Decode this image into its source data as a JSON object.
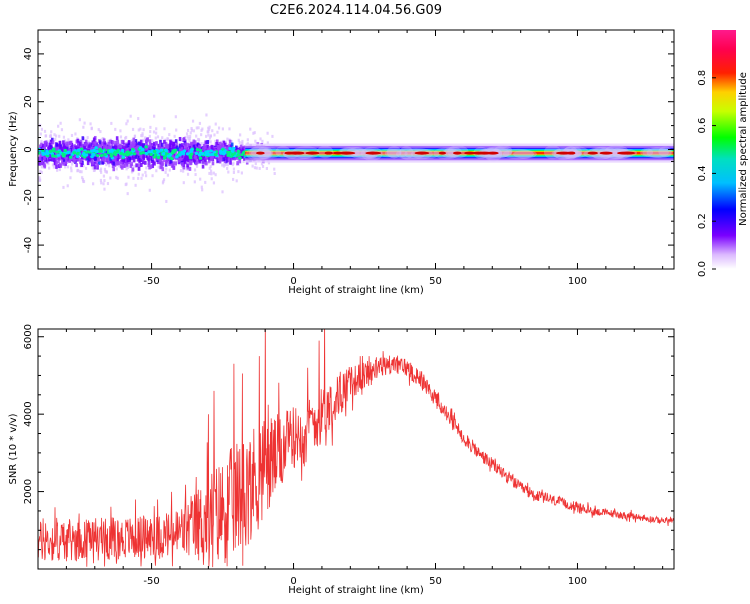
{
  "title": "C2E6.2024.114.04.56.G09",
  "chart_data": [
    {
      "type": "heatmap",
      "xlabel": "Height of straight line (km)",
      "ylabel": "Frequency (Hz)",
      "xlim": [
        -90,
        134
      ],
      "ylim": [
        -50,
        50
      ],
      "x_ticks": [
        -50,
        0,
        50,
        100
      ],
      "y_ticks": [
        -40,
        -20,
        0,
        20,
        40
      ],
      "colorbar": {
        "label": "Normalized spectral amplitude",
        "range": [
          0,
          1
        ],
        "ticks": [
          0.0,
          0.2,
          0.4,
          0.6,
          0.8
        ],
        "colormap": "rainbow (white-purple-blue-cyan-green-yellow-red-pink)"
      },
      "center_frequency_hz": -1.5,
      "regions": [
        {
          "x_from": -90,
          "x_to": -15,
          "description": "broad scatter",
          "freq_spread_hz": [
            -12,
            12
          ],
          "max_outliers_hz": [
            -25,
            28
          ]
        },
        {
          "x_from": -15,
          "x_to": 134,
          "description": "narrow line",
          "freq_spread_hz": [
            -3,
            0.5
          ]
        }
      ],
      "colors": {
        "max": "#e00000",
        "line_core": "#ff0000",
        "halo": "#c8a0ff"
      }
    },
    {
      "type": "line",
      "xlabel": "Height of straight line (km)",
      "ylabel": "SNR (10 * v/v)",
      "xlim": [
        -90,
        134
      ],
      "ylim": [
        0,
        6200
      ],
      "x_ticks": [
        -50,
        0,
        50,
        100
      ],
      "y_ticks": [
        2000,
        4000,
        6000
      ],
      "color": "#ee3333",
      "envelope": {
        "x": [
          -90,
          -75,
          -60,
          -45,
          -40,
          -35,
          -30,
          -25,
          -20,
          -15,
          -10,
          -5,
          0,
          5,
          10,
          15,
          20,
          25,
          30,
          35,
          40,
          45,
          50,
          55,
          60,
          65,
          70,
          75,
          80,
          85,
          90,
          95,
          100,
          105,
          110,
          115,
          120,
          125,
          130,
          134
        ],
        "mean": [
          700,
          750,
          800,
          850,
          950,
          1100,
          1300,
          1500,
          1800,
          2200,
          2600,
          3000,
          3400,
          3700,
          4000,
          4400,
          4800,
          5000,
          5200,
          5300,
          5200,
          4900,
          4400,
          3900,
          3400,
          3000,
          2700,
          2400,
          2100,
          1900,
          1800,
          1700,
          1600,
          1500,
          1450,
          1400,
          1350,
          1300,
          1250,
          1250
        ],
        "noise": [
          550,
          550,
          550,
          600,
          700,
          900,
          1200,
          1400,
          1500,
          1500,
          1400,
          1000,
          800,
          700,
          700,
          600,
          450,
          350,
          300,
          250,
          250,
          250,
          220,
          200,
          200,
          180,
          170,
          160,
          150,
          150,
          140,
          130,
          120,
          110,
          100,
          100,
          90,
          90,
          80,
          80
        ]
      },
      "spikes": [
        {
          "x": -30,
          "y": 4000
        },
        {
          "x": -28,
          "y": 4600
        },
        {
          "x": -21,
          "y": 5300
        },
        {
          "x": -18,
          "y": 5050
        },
        {
          "x": -12,
          "y": 5500
        },
        {
          "x": -10,
          "y": 6500
        },
        {
          "x": 5,
          "y": 5200
        },
        {
          "x": 9,
          "y": 5900
        },
        {
          "x": 11,
          "y": 6500
        }
      ]
    }
  ]
}
